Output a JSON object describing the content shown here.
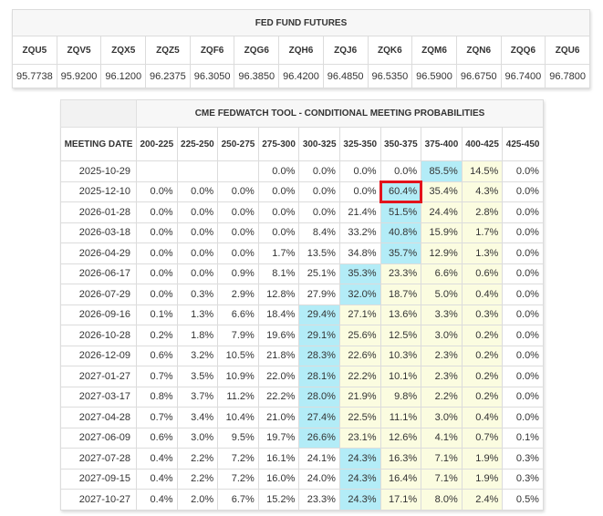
{
  "futures": {
    "title": "FED FUND FUTURES",
    "contracts": [
      {
        "symbol": "ZQU5",
        "price": "95.7738"
      },
      {
        "symbol": "ZQV5",
        "price": "95.9200"
      },
      {
        "symbol": "ZQX5",
        "price": "96.1200"
      },
      {
        "symbol": "ZQZ5",
        "price": "96.2375"
      },
      {
        "symbol": "ZQF6",
        "price": "96.3050"
      },
      {
        "symbol": "ZQG6",
        "price": "96.3850"
      },
      {
        "symbol": "ZQH6",
        "price": "96.4200"
      },
      {
        "symbol": "ZQJ6",
        "price": "96.4850"
      },
      {
        "symbol": "ZQK6",
        "price": "96.5350"
      },
      {
        "symbol": "ZQM6",
        "price": "96.5900"
      },
      {
        "symbol": "ZQN6",
        "price": "96.6750"
      },
      {
        "symbol": "ZQQ6",
        "price": "96.7400"
      },
      {
        "symbol": "ZQU6",
        "price": "96.7800"
      }
    ]
  },
  "probabilities": {
    "title": "CME FEDWATCH TOOL - CONDITIONAL MEETING PROBABILITIES",
    "date_header": "MEETING DATE",
    "ranges": [
      "200-225",
      "225-250",
      "250-275",
      "275-300",
      "300-325",
      "325-350",
      "350-375",
      "375-400",
      "400-425",
      "425-450"
    ],
    "highlight_color": "#e3131c",
    "colors": {
      "max": "#b3ecf7",
      "second": "#fbfce0"
    },
    "rows": [
      {
        "date": "2025-10-29",
        "values": [
          "",
          "",
          "",
          "0.0%",
          "0.0%",
          "0.0%",
          "0.0%",
          "85.5%",
          "14.5%",
          "0.0%"
        ],
        "shade": [
          "",
          "",
          "",
          "",
          "",
          "",
          "",
          "max",
          "second",
          ""
        ],
        "highlight": -1
      },
      {
        "date": "2025-12-10",
        "values": [
          "0.0%",
          "0.0%",
          "0.0%",
          "0.0%",
          "0.0%",
          "0.0%",
          "60.4%",
          "35.4%",
          "4.3%",
          "0.0%"
        ],
        "shade": [
          "",
          "",
          "",
          "",
          "",
          "",
          "max",
          "second",
          "second",
          ""
        ],
        "highlight": 6
      },
      {
        "date": "2026-01-28",
        "values": [
          "0.0%",
          "0.0%",
          "0.0%",
          "0.0%",
          "0.0%",
          "21.4%",
          "51.5%",
          "24.4%",
          "2.8%",
          "0.0%"
        ],
        "shade": [
          "",
          "",
          "",
          "",
          "",
          "",
          "max",
          "second",
          "second",
          ""
        ],
        "highlight": -1
      },
      {
        "date": "2026-03-18",
        "values": [
          "0.0%",
          "0.0%",
          "0.0%",
          "0.0%",
          "8.4%",
          "33.2%",
          "40.8%",
          "15.9%",
          "1.7%",
          "0.0%"
        ],
        "shade": [
          "",
          "",
          "",
          "",
          "",
          "",
          "max",
          "second",
          "second",
          ""
        ],
        "highlight": -1
      },
      {
        "date": "2026-04-29",
        "values": [
          "0.0%",
          "0.0%",
          "0.0%",
          "1.7%",
          "13.5%",
          "34.8%",
          "35.7%",
          "12.9%",
          "1.3%",
          "0.0%"
        ],
        "shade": [
          "",
          "",
          "",
          "",
          "",
          "",
          "max",
          "second",
          "second",
          ""
        ],
        "highlight": -1
      },
      {
        "date": "2026-06-17",
        "values": [
          "0.0%",
          "0.0%",
          "0.9%",
          "8.1%",
          "25.1%",
          "35.3%",
          "23.3%",
          "6.6%",
          "0.6%",
          "0.0%"
        ],
        "shade": [
          "",
          "",
          "",
          "",
          "",
          "max",
          "second",
          "second",
          "second",
          ""
        ],
        "highlight": -1
      },
      {
        "date": "2026-07-29",
        "values": [
          "0.0%",
          "0.3%",
          "2.9%",
          "12.8%",
          "27.9%",
          "32.0%",
          "18.7%",
          "5.0%",
          "0.4%",
          "0.0%"
        ],
        "shade": [
          "",
          "",
          "",
          "",
          "",
          "max",
          "second",
          "second",
          "second",
          ""
        ],
        "highlight": -1
      },
      {
        "date": "2026-09-16",
        "values": [
          "0.1%",
          "1.3%",
          "6.6%",
          "18.4%",
          "29.4%",
          "27.1%",
          "13.6%",
          "3.3%",
          "0.3%",
          "0.0%"
        ],
        "shade": [
          "",
          "",
          "",
          "",
          "max",
          "second",
          "second",
          "second",
          "second",
          ""
        ],
        "highlight": -1
      },
      {
        "date": "2026-10-28",
        "values": [
          "0.2%",
          "1.8%",
          "7.9%",
          "19.6%",
          "29.1%",
          "25.6%",
          "12.5%",
          "3.0%",
          "0.2%",
          "0.0%"
        ],
        "shade": [
          "",
          "",
          "",
          "",
          "max",
          "second",
          "second",
          "second",
          "second",
          ""
        ],
        "highlight": -1
      },
      {
        "date": "2026-12-09",
        "values": [
          "0.6%",
          "3.2%",
          "10.5%",
          "21.8%",
          "28.3%",
          "22.6%",
          "10.3%",
          "2.3%",
          "0.2%",
          "0.0%"
        ],
        "shade": [
          "",
          "",
          "",
          "",
          "max",
          "second",
          "second",
          "second",
          "second",
          ""
        ],
        "highlight": -1
      },
      {
        "date": "2027-01-27",
        "values": [
          "0.7%",
          "3.5%",
          "10.9%",
          "22.0%",
          "28.1%",
          "22.2%",
          "10.1%",
          "2.3%",
          "0.2%",
          "0.0%"
        ],
        "shade": [
          "",
          "",
          "",
          "",
          "max",
          "second",
          "second",
          "second",
          "second",
          ""
        ],
        "highlight": -1
      },
      {
        "date": "2027-03-17",
        "values": [
          "0.8%",
          "3.7%",
          "11.2%",
          "22.2%",
          "28.0%",
          "21.9%",
          "9.8%",
          "2.2%",
          "0.2%",
          "0.0%"
        ],
        "shade": [
          "",
          "",
          "",
          "",
          "max",
          "second",
          "second",
          "second",
          "second",
          ""
        ],
        "highlight": -1
      },
      {
        "date": "2027-04-28",
        "values": [
          "0.7%",
          "3.4%",
          "10.4%",
          "21.0%",
          "27.4%",
          "22.5%",
          "11.1%",
          "3.0%",
          "0.4%",
          "0.0%"
        ],
        "shade": [
          "",
          "",
          "",
          "",
          "max",
          "second",
          "second",
          "second",
          "second",
          ""
        ],
        "highlight": -1
      },
      {
        "date": "2027-06-09",
        "values": [
          "0.6%",
          "3.0%",
          "9.5%",
          "19.7%",
          "26.6%",
          "23.1%",
          "12.6%",
          "4.1%",
          "0.7%",
          "0.1%"
        ],
        "shade": [
          "",
          "",
          "",
          "",
          "max",
          "second",
          "second",
          "second",
          "second",
          ""
        ],
        "highlight": -1
      },
      {
        "date": "2027-07-28",
        "values": [
          "0.4%",
          "2.2%",
          "7.2%",
          "16.1%",
          "24.1%",
          "24.3%",
          "16.3%",
          "7.1%",
          "1.9%",
          "0.3%"
        ],
        "shade": [
          "",
          "",
          "",
          "",
          "",
          "max",
          "second",
          "second",
          "second",
          ""
        ],
        "highlight": -1
      },
      {
        "date": "2027-09-15",
        "values": [
          "0.4%",
          "2.2%",
          "7.2%",
          "16.0%",
          "24.0%",
          "24.3%",
          "16.4%",
          "7.1%",
          "1.9%",
          "0.3%"
        ],
        "shade": [
          "",
          "",
          "",
          "",
          "",
          "max",
          "second",
          "second",
          "second",
          ""
        ],
        "highlight": -1
      },
      {
        "date": "2027-10-27",
        "values": [
          "0.4%",
          "2.0%",
          "6.7%",
          "15.2%",
          "23.3%",
          "24.3%",
          "17.1%",
          "8.0%",
          "2.4%",
          "0.5%"
        ],
        "shade": [
          "",
          "",
          "",
          "",
          "",
          "max",
          "second",
          "second",
          "second",
          ""
        ],
        "highlight": -1
      }
    ]
  }
}
